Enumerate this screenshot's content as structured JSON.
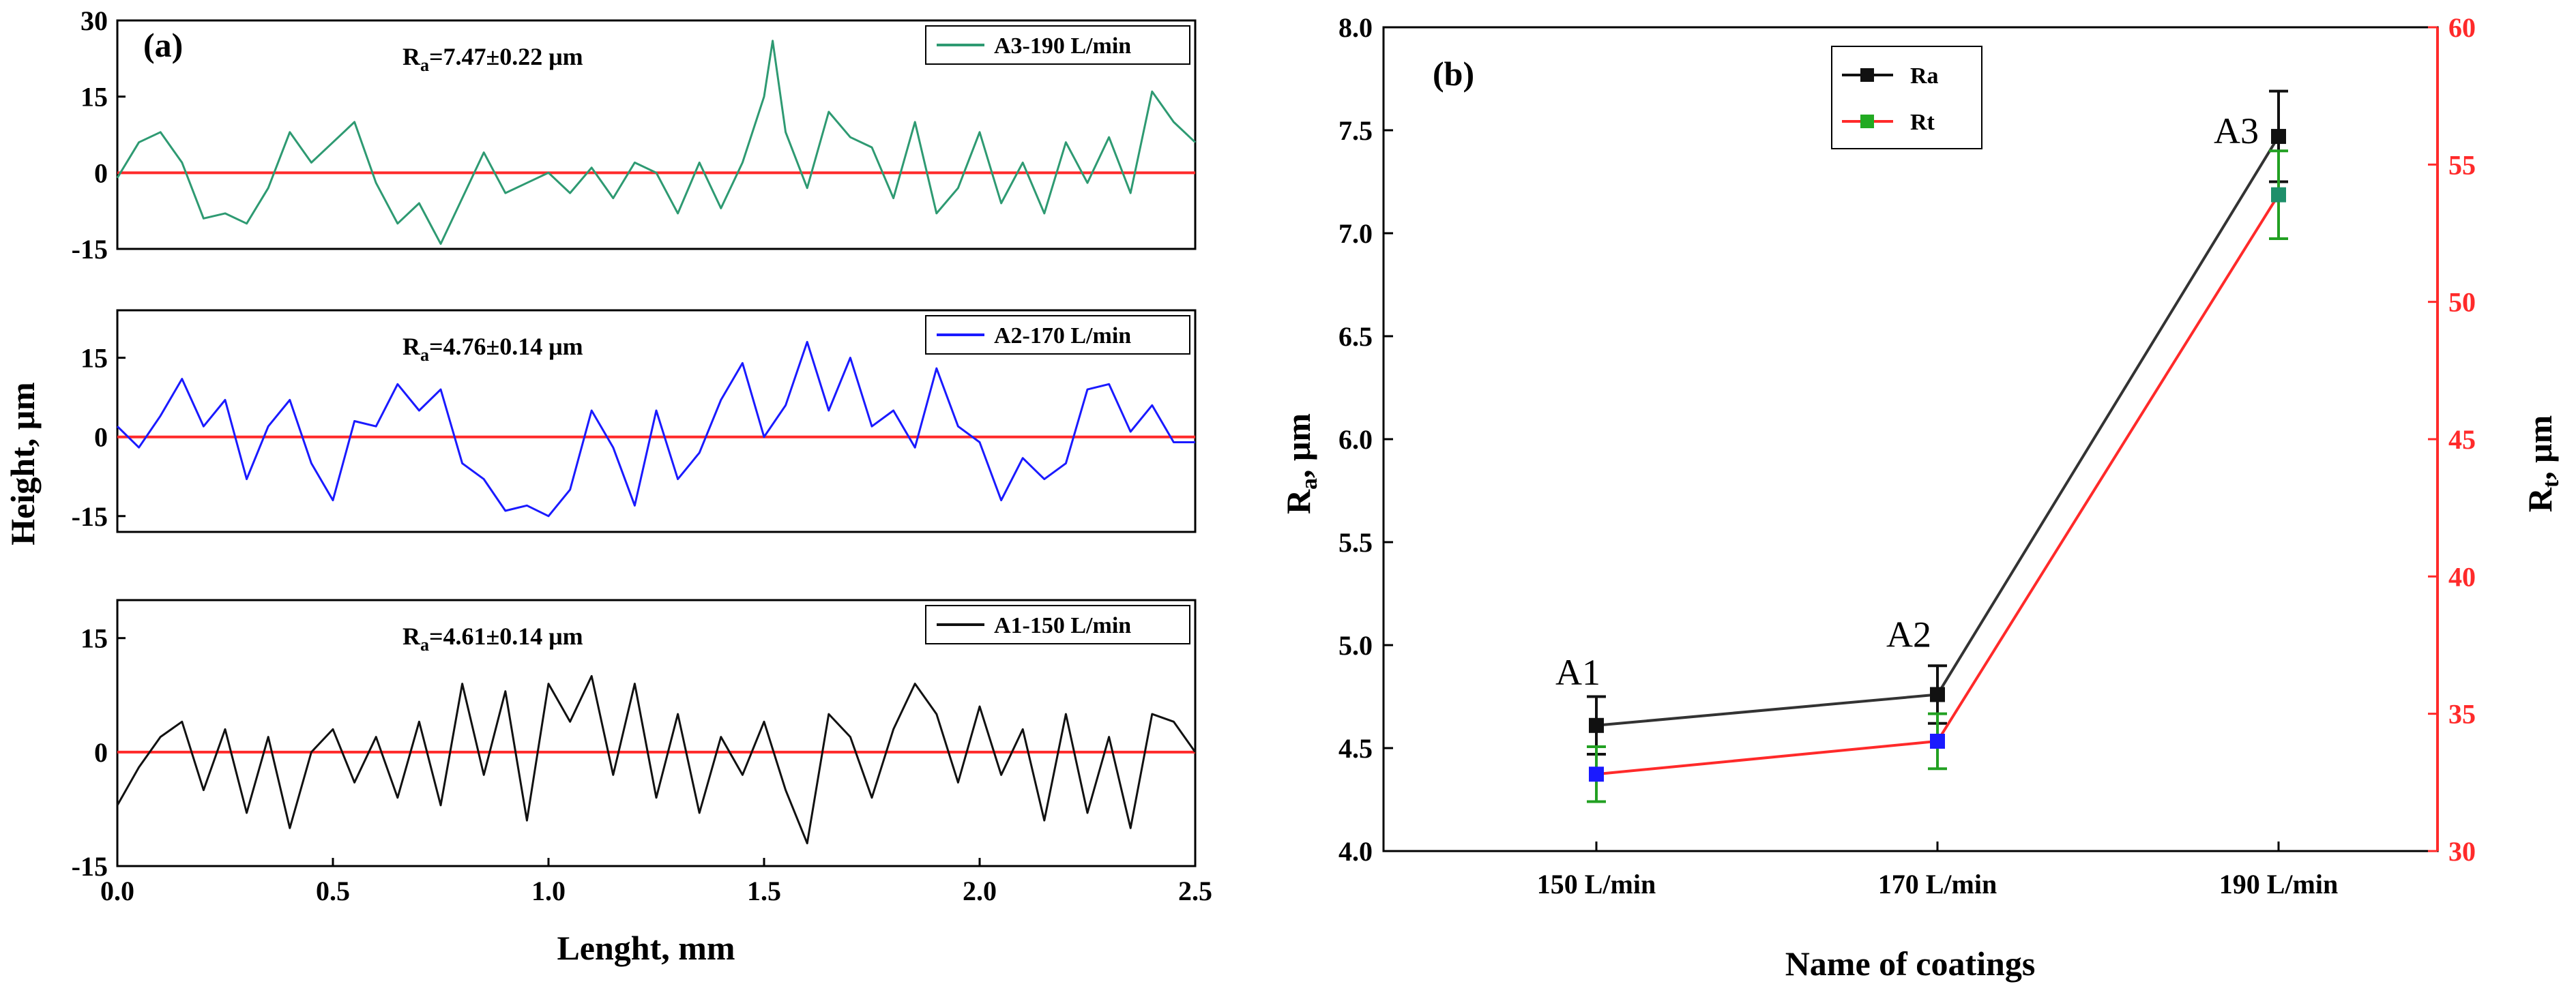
{
  "chart_data": [
    {
      "panel": "(a)",
      "type": "line",
      "title": "",
      "xlabel": "Lenght, mm",
      "ylabel": "Height, μm",
      "xlim": [
        0.0,
        2.5
      ],
      "x_ticks": [
        "0.0",
        "0.5",
        "1.0",
        "1.5",
        "2.0",
        "2.5"
      ],
      "subplots": [
        {
          "name": "A3-190 L/min",
          "color": "#2e9a72",
          "annotation": {
            "prefix": "R",
            "sub": "a",
            "text": "=7.47±0.22 μm"
          },
          "ylim": [
            -15,
            30
          ],
          "y_ticks": [
            "-15",
            "0",
            "15",
            "30"
          ],
          "reference_line": 0,
          "profile_x": [
            0.0,
            0.05,
            0.1,
            0.15,
            0.2,
            0.25,
            0.3,
            0.35,
            0.4,
            0.45,
            0.5,
            0.55,
            0.6,
            0.65,
            0.7,
            0.75,
            0.8,
            0.85,
            0.9,
            0.95,
            1.0,
            1.05,
            1.1,
            1.15,
            1.2,
            1.25,
            1.3,
            1.35,
            1.4,
            1.45,
            1.5,
            1.52,
            1.55,
            1.6,
            1.65,
            1.7,
            1.75,
            1.8,
            1.85,
            1.9,
            1.95,
            2.0,
            2.05,
            2.1,
            2.15,
            2.2,
            2.25,
            2.3,
            2.35,
            2.4,
            2.45,
            2.5
          ],
          "profile_y": [
            -1,
            6,
            8,
            2,
            -9,
            -8,
            -10,
            -3,
            8,
            2,
            6,
            10,
            -2,
            -10,
            -6,
            -14,
            -5,
            4,
            -4,
            -2,
            0,
            -4,
            1,
            -5,
            2,
            0,
            -8,
            2,
            -7,
            2,
            15,
            26,
            8,
            -3,
            12,
            7,
            5,
            -5,
            10,
            -8,
            -3,
            8,
            -6,
            2,
            -8,
            6,
            -2,
            7,
            -4,
            16,
            10,
            6
          ]
        },
        {
          "name": "A2-170 L/min",
          "color": "#1a1aff",
          "annotation": {
            "prefix": "R",
            "sub": "a",
            "text": "=4.76±0.14 μm"
          },
          "ylim": [
            -18,
            24
          ],
          "y_ticks": [
            "-15",
            "0",
            "15"
          ],
          "reference_line": 0,
          "profile_x": [
            0.0,
            0.05,
            0.1,
            0.15,
            0.2,
            0.25,
            0.3,
            0.35,
            0.4,
            0.45,
            0.5,
            0.55,
            0.6,
            0.65,
            0.7,
            0.75,
            0.8,
            0.85,
            0.9,
            0.95,
            1.0,
            1.05,
            1.1,
            1.15,
            1.2,
            1.25,
            1.3,
            1.35,
            1.4,
            1.45,
            1.5,
            1.55,
            1.6,
            1.65,
            1.7,
            1.75,
            1.8,
            1.85,
            1.9,
            1.95,
            2.0,
            2.05,
            2.1,
            2.15,
            2.2,
            2.25,
            2.3,
            2.35,
            2.4,
            2.45,
            2.5
          ],
          "profile_y": [
            2,
            -2,
            4,
            11,
            2,
            7,
            -8,
            2,
            7,
            -5,
            -12,
            3,
            2,
            10,
            5,
            9,
            -5,
            -8,
            -14,
            -13,
            -15,
            -10,
            5,
            -2,
            -13,
            5,
            -8,
            -3,
            7,
            14,
            0,
            6,
            18,
            5,
            15,
            2,
            5,
            -2,
            13,
            2,
            -1,
            -12,
            -4,
            -8,
            -5,
            9,
            10,
            1,
            6,
            -1,
            -1
          ]
        },
        {
          "name": "A1-150 L/min",
          "color": "#111111",
          "annotation": {
            "prefix": "R",
            "sub": "a",
            "text": "=4.61±0.14 μm"
          },
          "ylim": [
            -15,
            20
          ],
          "y_ticks": [
            "-15",
            "0",
            "15"
          ],
          "reference_line": 0,
          "profile_x": [
            0.0,
            0.05,
            0.1,
            0.15,
            0.2,
            0.25,
            0.3,
            0.35,
            0.4,
            0.45,
            0.5,
            0.55,
            0.6,
            0.65,
            0.7,
            0.75,
            0.8,
            0.85,
            0.9,
            0.95,
            1.0,
            1.05,
            1.1,
            1.15,
            1.2,
            1.25,
            1.3,
            1.35,
            1.4,
            1.45,
            1.5,
            1.55,
            1.6,
            1.65,
            1.7,
            1.75,
            1.8,
            1.85,
            1.9,
            1.95,
            2.0,
            2.05,
            2.1,
            2.15,
            2.2,
            2.25,
            2.3,
            2.35,
            2.4,
            2.45,
            2.5
          ],
          "profile_y": [
            -7,
            -2,
            2,
            4,
            -5,
            3,
            -8,
            2,
            -10,
            0,
            3,
            -4,
            2,
            -6,
            4,
            -7,
            9,
            -3,
            8,
            -9,
            9,
            4,
            10,
            -3,
            9,
            -6,
            5,
            -8,
            2,
            -3,
            4,
            -5,
            -12,
            5,
            2,
            -6,
            3,
            9,
            5,
            -4,
            6,
            -3,
            3,
            -9,
            5,
            -8,
            2,
            -10,
            5,
            4,
            0
          ]
        }
      ]
    },
    {
      "panel": "(b)",
      "type": "line",
      "title": "",
      "xlabel": "Name of coatings",
      "ylabel": {
        "prefix": "R",
        "sub": "a",
        "suffix": ", μm"
      },
      "y2label": {
        "prefix": "R",
        "sub": "t",
        "suffix": ", μm"
      },
      "categories": [
        "150 L/min",
        "170 L/min",
        "190 L/min"
      ],
      "point_labels": [
        "A1",
        "A2",
        "A3"
      ],
      "ylim": [
        4.0,
        8.0
      ],
      "y_ticks": [
        "4.0",
        "4.5",
        "5.0",
        "5.5",
        "6.0",
        "6.5",
        "7.0",
        "7.5",
        "8.0"
      ],
      "y2lim": [
        30,
        60
      ],
      "y2_ticks": [
        "30",
        "35",
        "40",
        "45",
        "50",
        "55",
        "60"
      ],
      "legend_position": "top-center",
      "series": [
        {
          "name": "Ra",
          "axis": "left",
          "line_color": "#333333",
          "marker_color": "#111111",
          "values": [
            4.61,
            4.76,
            7.47
          ],
          "errors": [
            0.14,
            0.14,
            0.22
          ],
          "error_color": "#111111"
        },
        {
          "name": "Rt",
          "axis": "right",
          "line_color": "#ff2a2a",
          "marker_color": "#1a1aff",
          "values": [
            32.8,
            34.0,
            53.9
          ],
          "errors": [
            1.0,
            1.0,
            1.6
          ],
          "error_color": "#22a022",
          "legend_marker_color": "#22aa22"
        }
      ],
      "accent_colors": {
        "right_axis": "#ff2a2a",
        "reference": "#ff2a2a"
      }
    }
  ]
}
